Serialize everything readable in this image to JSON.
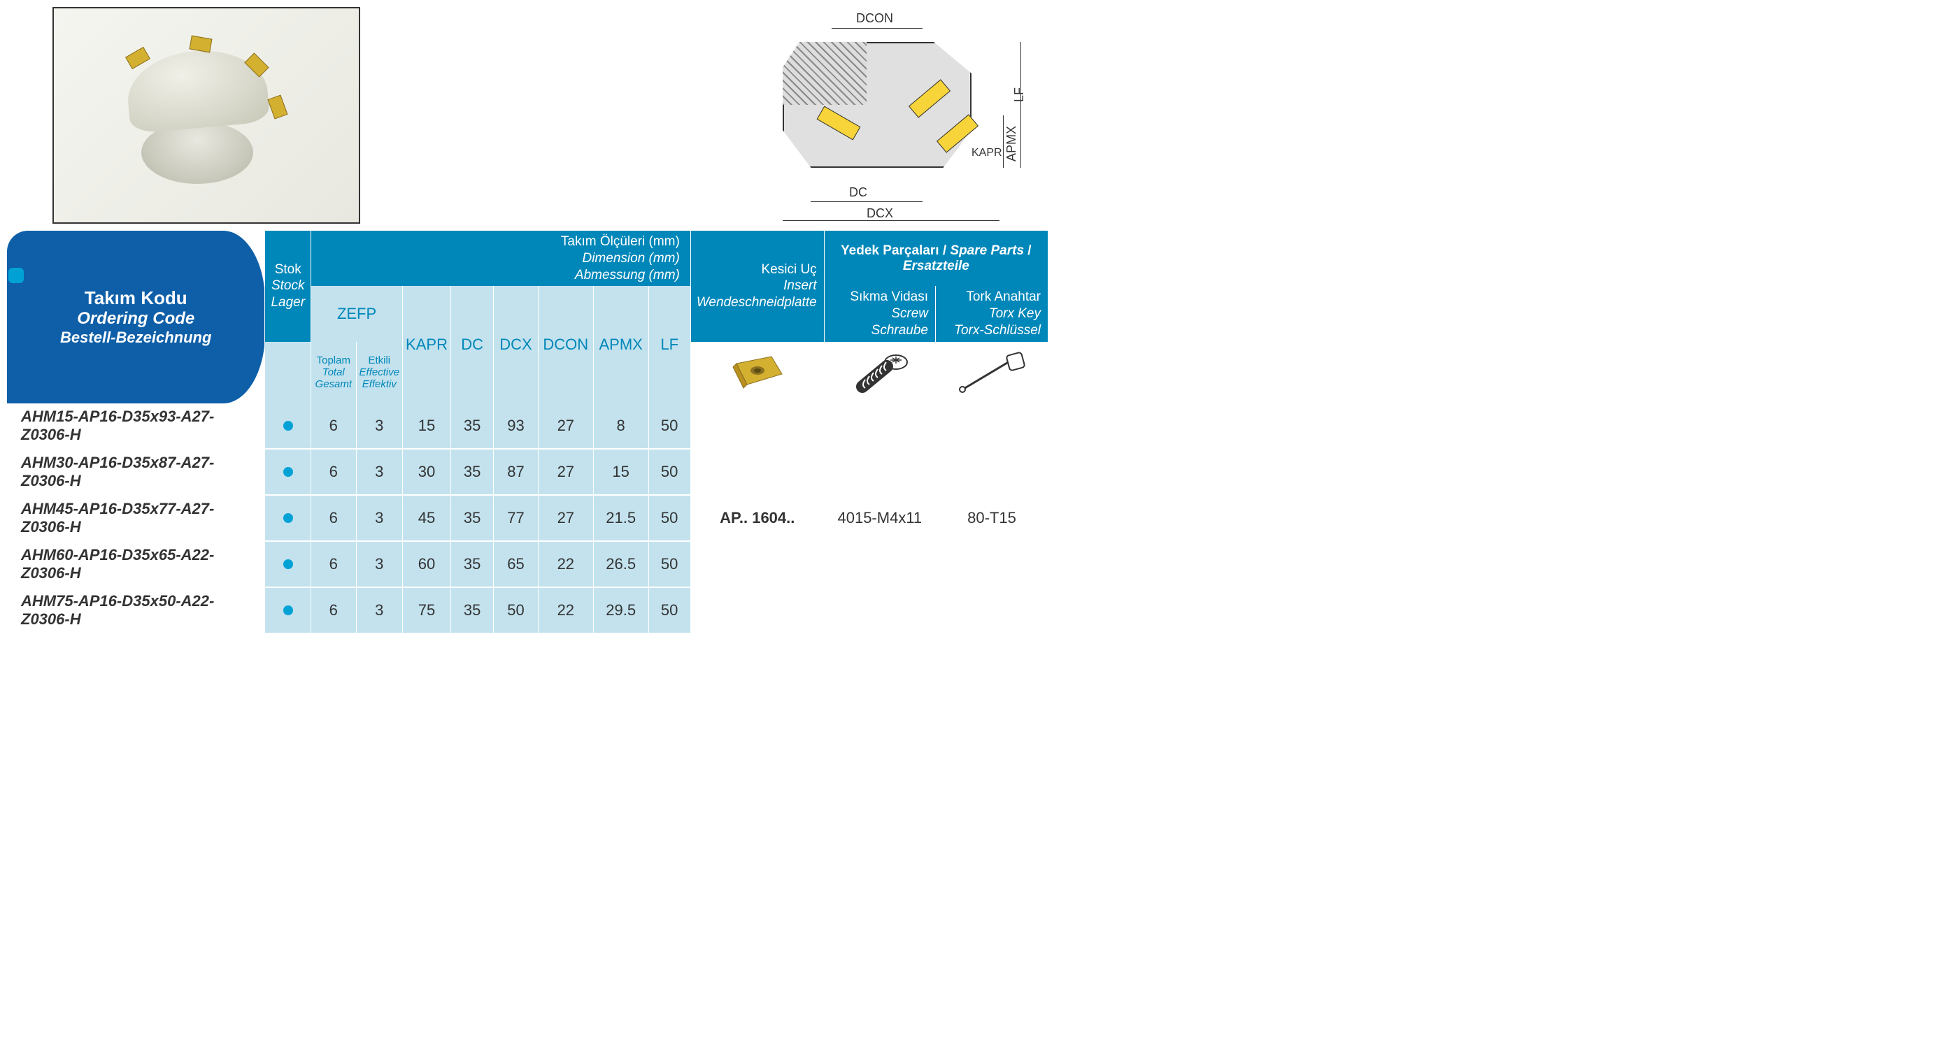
{
  "headers": {
    "code": {
      "tr": "Takım Kodu",
      "en": "Ordering Code",
      "de": "Bestell-Bezeichnung"
    },
    "stock": {
      "tr": "Stok",
      "en": "Stock",
      "de": "Lager"
    },
    "dimensions": {
      "tr": "Takım Ölçüleri (mm)",
      "en": "Dimension (mm)",
      "de": "Abmessung (mm)"
    },
    "zefp": "ZEFP",
    "zefp_total": {
      "tr": "Toplam",
      "en": "Total",
      "de": "Gesamt"
    },
    "zefp_eff": {
      "tr": "Etkili",
      "en": "Effective",
      "de": "Effektiv"
    },
    "kapr": "KAPR",
    "dc": "DC",
    "dcx": "DCX",
    "dcon": "DCON",
    "apmx": "APMX",
    "lf": "LF",
    "insert": {
      "tr": "Kesici Uç",
      "en": "Insert",
      "de": "Wendeschneidplatte"
    },
    "spare_parts": {
      "tr": "Yedek Parçaları",
      "en": "Spare Parts",
      "de": "Ersatzteile"
    },
    "screw": {
      "tr": "Sıkma Vidası",
      "en": "Screw",
      "de": "Schraube"
    },
    "torx": {
      "tr": "Tork Anahtar",
      "en": "Torx Key",
      "de": "Torx-Schlüssel"
    }
  },
  "diagram_labels": {
    "dcon": "DCON",
    "dc": "DC",
    "dcx": "DCX",
    "lf": "LF",
    "apmx": "APMX",
    "kapr": "KAPR"
  },
  "rows": [
    {
      "code": "AHM15-AP16-D35x93-A27-Z0306-H",
      "stock": true,
      "total": "6",
      "eff": "3",
      "kapr": "15",
      "dc": "35",
      "dcx": "93",
      "dcon": "27",
      "apmx": "8",
      "lf": "50"
    },
    {
      "code": "AHM30-AP16-D35x87-A27-Z0306-H",
      "stock": true,
      "total": "6",
      "eff": "3",
      "kapr": "30",
      "dc": "35",
      "dcx": "87",
      "dcon": "27",
      "apmx": "15",
      "lf": "50"
    },
    {
      "code": "AHM45-AP16-D35x77-A27-Z0306-H",
      "stock": true,
      "total": "6",
      "eff": "3",
      "kapr": "45",
      "dc": "35",
      "dcx": "77",
      "dcon": "27",
      "apmx": "21.5",
      "lf": "50"
    },
    {
      "code": "AHM60-AP16-D35x65-A22-Z0306-H",
      "stock": true,
      "total": "6",
      "eff": "3",
      "kapr": "60",
      "dc": "35",
      "dcx": "65",
      "dcon": "22",
      "apmx": "26.5",
      "lf": "50"
    },
    {
      "code": "AHM75-AP16-D35x50-A22-Z0306-H",
      "stock": true,
      "total": "6",
      "eff": "3",
      "kapr": "75",
      "dc": "35",
      "dcx": "50",
      "dcon": "22",
      "apmx": "29.5",
      "lf": "50"
    }
  ],
  "shared": {
    "insert": "AP.. 1604..",
    "screw": "4015-M4x11",
    "torx": "80-T15"
  },
  "colors": {
    "header_dark": "#0087b9",
    "header_code": "#0e5fa8",
    "header_light": "#c3e2ee",
    "stock_dot": "#00a2d6",
    "insert_yellow": "#f7d43a"
  }
}
